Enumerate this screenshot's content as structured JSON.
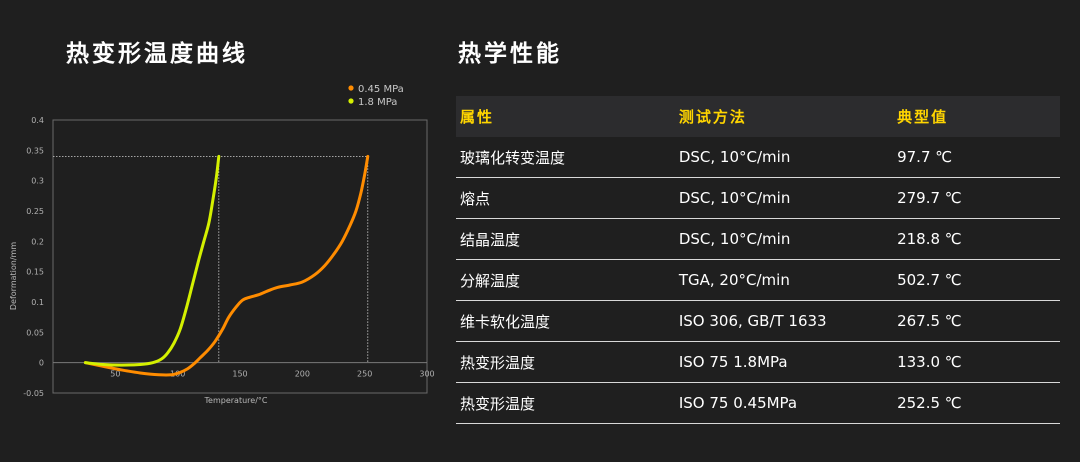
{
  "left_title": "热变形温度曲线",
  "right_title": "热学性能",
  "chart_data": {
    "type": "line",
    "xlabel": "Temperature/°C",
    "ylabel": "Deformation/mm",
    "xlim": [
      0,
      300
    ],
    "ylim": [
      -0.05,
      0.4
    ],
    "x_ticks": [
      "50",
      "100",
      "150",
      "200",
      "250",
      "300"
    ],
    "x_tick_values": [
      50,
      100,
      150,
      200,
      250,
      300
    ],
    "y_ticks": [
      "0.4",
      "0.35",
      "0.3",
      "0.25",
      "0.2",
      "0.15",
      "0.1",
      "0.05",
      "0",
      "-0.05"
    ],
    "y_tick_values": [
      0.4,
      0.35,
      0.3,
      0.25,
      0.2,
      0.15,
      0.1,
      0.05,
      0,
      -0.05
    ],
    "legend_position": "top-right",
    "reference_lines": {
      "y": 0.34,
      "x": [
        133.0,
        252.5
      ]
    },
    "series": [
      {
        "name": "0.45 MPa",
        "color": "#ff8c00",
        "x": [
          26,
          40,
          55,
          70,
          85,
          95,
          102,
          108,
          113,
          118,
          124,
          130,
          136,
          141,
          147,
          152,
          158,
          165,
          172,
          180,
          190,
          200,
          210,
          218,
          225,
          232,
          238,
          243,
          247,
          250,
          252.5
        ],
        "y": [
          0.0,
          -0.006,
          -0.012,
          -0.017,
          -0.02,
          -0.02,
          -0.016,
          -0.01,
          -0.002,
          0.008,
          0.02,
          0.035,
          0.055,
          0.075,
          0.092,
          0.103,
          0.108,
          0.112,
          0.118,
          0.124,
          0.128,
          0.133,
          0.145,
          0.16,
          0.178,
          0.2,
          0.225,
          0.25,
          0.28,
          0.31,
          0.34
        ]
      },
      {
        "name": "1.8 MPa",
        "color": "#d4f000",
        "x": [
          26,
          40,
          55,
          70,
          80,
          87,
          92,
          97,
          102,
          107,
          112,
          117,
          121,
          125,
          128,
          131,
          133.0
        ],
        "y": [
          0.0,
          -0.003,
          -0.004,
          -0.003,
          0.0,
          0.006,
          0.016,
          0.032,
          0.055,
          0.09,
          0.13,
          0.17,
          0.2,
          0.23,
          0.265,
          0.305,
          0.34
        ]
      }
    ]
  },
  "table": {
    "headers": [
      "属性",
      "测试方法",
      "典型值"
    ],
    "rows": [
      [
        "玻璃化转变温度",
        "DSC, 10°C/min",
        "97.7 ℃"
      ],
      [
        "熔点",
        "DSC, 10°C/min",
        "279.7 ℃"
      ],
      [
        "结晶温度",
        "DSC, 10°C/min",
        "218.8 ℃"
      ],
      [
        "分解温度",
        "TGA, 20°C/min",
        "502.7 ℃"
      ],
      [
        "维卡软化温度",
        "ISO 306, GB/T 1633",
        "267.5 ℃"
      ],
      [
        "热变形温度",
        "ISO 75 1.8MPa",
        "133.0 ℃"
      ],
      [
        "热变形温度",
        "ISO 75 0.45MPa",
        "252.5 ℃"
      ]
    ]
  },
  "colors": {
    "background": "#1f1f1f",
    "header_text": "#ffd500",
    "header_bg": "#2c2c2e",
    "row_divider": "#d8d8d8"
  }
}
